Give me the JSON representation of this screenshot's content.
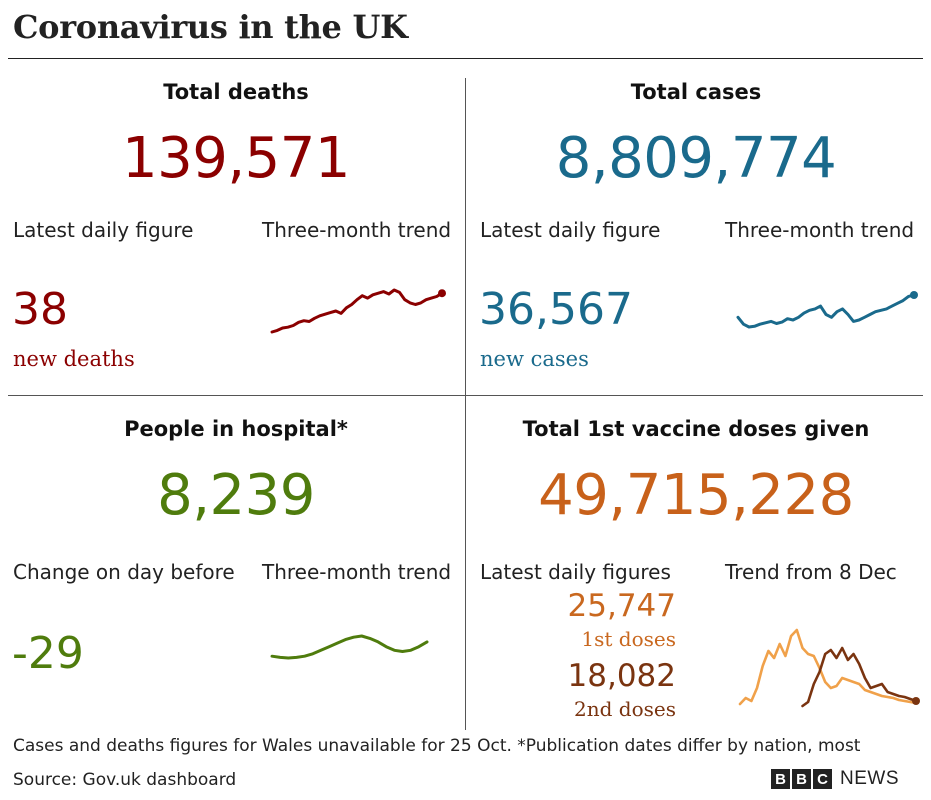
{
  "title": "Coronavirus in the UK",
  "panels": {
    "deaths": {
      "heading": "Total deaths",
      "total": "139,571",
      "daily_label": "Latest daily figure",
      "trend_label": "Three-month trend",
      "daily_value": "38",
      "daily_unit": "new deaths",
      "color": "#8b0000"
    },
    "cases": {
      "heading": "Total cases",
      "total": "8,809,774",
      "daily_label": "Latest daily figure",
      "trend_label": "Three-month trend",
      "daily_value": "36,567",
      "daily_unit": "new cases",
      "color": "#1a6a8c"
    },
    "hospital": {
      "heading": "People in hospital*",
      "total": "8,239",
      "daily_label": "Change on day before",
      "trend_label": "Three-month trend",
      "daily_value": "-29",
      "color": "#4f7c0d"
    },
    "vaccine": {
      "heading": "Total 1st vaccine doses given",
      "total": "49,715,228",
      "daily_label": "Latest daily figures",
      "trend_label": "Trend from 8 Dec",
      "first_value": "25,747",
      "first_unit": "1st doses",
      "second_value": "18,082",
      "second_unit": "2nd doses",
      "color": "#c8611a",
      "first_color": "#f0a14a",
      "second_color": "#7a3410"
    }
  },
  "footnote": "Cases and deaths figures for Wales unavailable for 25 Oct. *Publication dates differ by nation, most",
  "source": "Source: Gov.uk dashboard",
  "logo": {
    "letters": [
      "B",
      "B",
      "C"
    ],
    "text": "NEWS"
  },
  "chart_data": [
    {
      "type": "line",
      "series": [
        {
          "values": [
            0,
            2,
            5,
            6,
            8,
            12,
            14,
            13,
            17,
            20,
            22,
            24,
            26,
            23,
            30,
            34,
            40,
            45,
            42,
            46,
            48,
            50,
            47,
            52,
            49,
            40,
            36,
            34,
            36,
            40,
            42,
            44,
            48
          ]
        }
      ]
    },
    {
      "type": "line",
      "series": [
        {
          "values": [
            18,
            8,
            4,
            5,
            8,
            10,
            12,
            9,
            11,
            16,
            14,
            18,
            24,
            28,
            30,
            34,
            22,
            18,
            26,
            30,
            22,
            12,
            14,
            18,
            22,
            26,
            28,
            30,
            34,
            38,
            42,
            48,
            50
          ]
        }
      ]
    },
    {
      "type": "line",
      "series": [
        {
          "values": [
            4,
            3,
            2.5,
            3,
            4,
            6,
            9,
            12,
            15,
            18,
            20,
            21,
            19,
            16,
            12,
            9,
            8,
            9,
            12,
            16
          ]
        }
      ]
    },
    {
      "type": "line",
      "series": [
        {
          "values": [
            2,
            8,
            5,
            18,
            40,
            55,
            48,
            62,
            50,
            70,
            76,
            58,
            52,
            50,
            38,
            24,
            18,
            20,
            28,
            26,
            24,
            22,
            16,
            14,
            12,
            10,
            9,
            8,
            6,
            5,
            4,
            3
          ]
        },
        {
          "values": [
            0,
            0,
            0,
            0,
            0,
            0,
            0,
            0,
            0,
            0,
            0,
            0,
            4,
            22,
            34,
            52,
            56,
            48,
            58,
            46,
            52,
            42,
            28,
            18,
            20,
            22,
            14,
            12,
            10,
            9,
            7,
            5
          ]
        }
      ]
    }
  ]
}
